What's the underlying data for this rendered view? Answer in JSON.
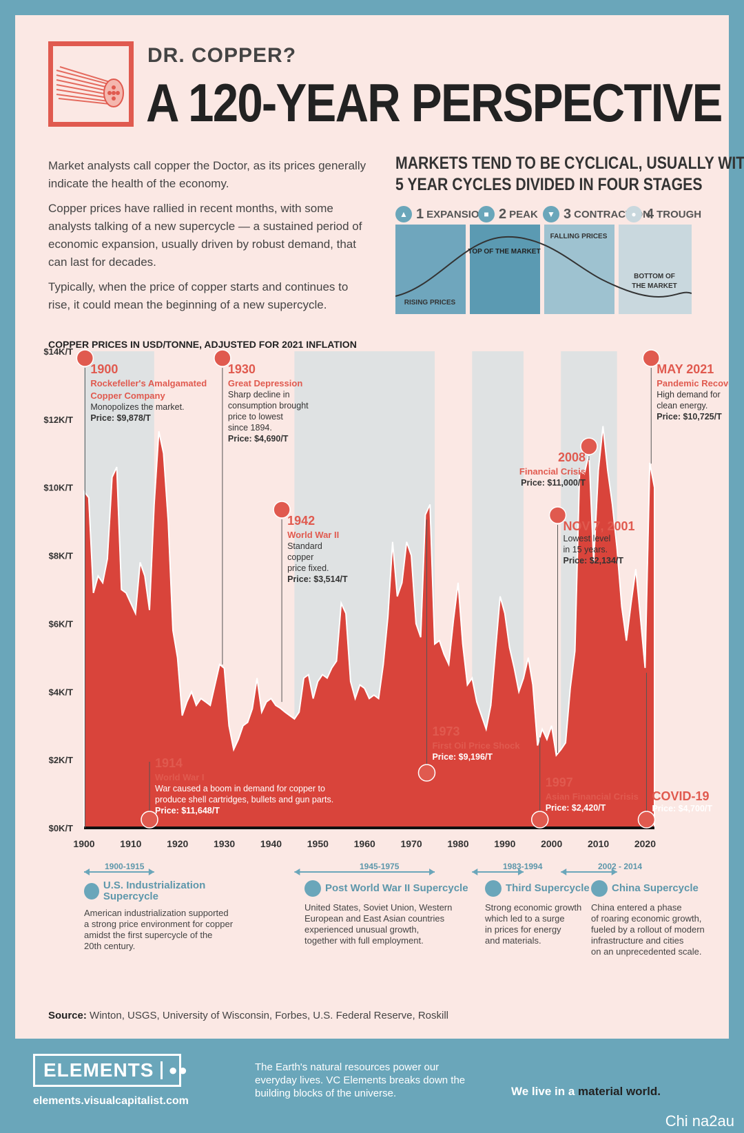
{
  "header": {
    "kicker": "DR. COPPER?",
    "title": "A 120-YEAR PERSPECTIVE"
  },
  "intro": [
    "Market analysts call copper the Doctor, as its prices generally indicate the health of the economy.",
    "Copper prices have rallied in recent months, with some analysts talking of a new supercycle — a sustained period of economic expansion, usually driven by robust demand, that can last for decades.",
    "Typically, when the price of copper starts and continues to rise, it could mean the beginning of a new supercycle."
  ],
  "cycles": {
    "title_line1": "MARKETS TEND TO BE CYCLICAL, USUALLY WITH",
    "title_line2": "5 YEAR CYCLES DIVIDED IN FOUR STAGES",
    "stages": [
      {
        "num": "1",
        "label": "EXPANSION"
      },
      {
        "num": "2",
        "label": "PEAK"
      },
      {
        "num": "3",
        "label": "CONTRACTION"
      },
      {
        "num": "4",
        "label": "TROUGH"
      }
    ],
    "notes": {
      "rising": "RISING PRICES",
      "top1": "TOP OF THE MARKET",
      "falling": "FALLING PRICES",
      "bottom1": "BOTTOM OF",
      "bottom2": "THE MARKET"
    },
    "colors": [
      "#6fa6bd",
      "#5b9ab2",
      "#9ec2d0",
      "#c9d8de"
    ]
  },
  "chart_data": {
    "type": "area",
    "title": "COPPER PRICES IN USD/TONNE, ADJUSTED FOR 2021 INFLATION",
    "ylim": [
      0,
      14000
    ],
    "xlim": [
      1900,
      2022
    ],
    "y_ticks": [
      {
        "v": 0,
        "label": "$0K/T"
      },
      {
        "v": 2000,
        "label": "$2K/T"
      },
      {
        "v": 4000,
        "label": "$4K/T"
      },
      {
        "v": 6000,
        "label": "$6K/T"
      },
      {
        "v": 8000,
        "label": "$8K/T"
      },
      {
        "v": 10000,
        "label": "$10K/T"
      },
      {
        "v": 12000,
        "label": "$12K/T"
      },
      {
        "v": 14000,
        "label": "$14K/T"
      }
    ],
    "x_ticks": [
      1900,
      1910,
      1920,
      1930,
      1940,
      1950,
      1960,
      1970,
      1980,
      1990,
      2000,
      2010,
      2020
    ],
    "color": "#d9443b",
    "points": [
      [
        1900,
        9878
      ],
      [
        1901,
        9700
      ],
      [
        1902,
        6900
      ],
      [
        1903,
        7400
      ],
      [
        1904,
        7200
      ],
      [
        1905,
        7900
      ],
      [
        1906,
        10300
      ],
      [
        1907,
        10600
      ],
      [
        1908,
        7000
      ],
      [
        1909,
        6900
      ],
      [
        1910,
        6600
      ],
      [
        1911,
        6300
      ],
      [
        1912,
        7800
      ],
      [
        1913,
        7400
      ],
      [
        1914,
        6400
      ],
      [
        1915,
        9500
      ],
      [
        1916,
        11648
      ],
      [
        1917,
        11000
      ],
      [
        1918,
        9000
      ],
      [
        1919,
        5800
      ],
      [
        1920,
        5000
      ],
      [
        1921,
        3300
      ],
      [
        1922,
        3700
      ],
      [
        1923,
        4000
      ],
      [
        1924,
        3600
      ],
      [
        1925,
        3800
      ],
      [
        1926,
        3700
      ],
      [
        1927,
        3600
      ],
      [
        1928,
        4200
      ],
      [
        1929,
        4800
      ],
      [
        1930,
        4690
      ],
      [
        1931,
        3000
      ],
      [
        1932,
        2300
      ],
      [
        1933,
        2600
      ],
      [
        1934,
        3000
      ],
      [
        1935,
        3100
      ],
      [
        1936,
        3500
      ],
      [
        1937,
        4400
      ],
      [
        1938,
        3400
      ],
      [
        1939,
        3700
      ],
      [
        1940,
        3800
      ],
      [
        1941,
        3600
      ],
      [
        1942,
        3514
      ],
      [
        1943,
        3400
      ],
      [
        1944,
        3300
      ],
      [
        1945,
        3200
      ],
      [
        1946,
        3400
      ],
      [
        1947,
        4400
      ],
      [
        1948,
        4500
      ],
      [
        1949,
        3800
      ],
      [
        1950,
        4300
      ],
      [
        1951,
        4500
      ],
      [
        1952,
        4400
      ],
      [
        1953,
        4700
      ],
      [
        1954,
        4900
      ],
      [
        1955,
        6600
      ],
      [
        1956,
        6300
      ],
      [
        1957,
        4300
      ],
      [
        1958,
        3800
      ],
      [
        1959,
        4200
      ],
      [
        1960,
        4100
      ],
      [
        1961,
        3800
      ],
      [
        1962,
        3900
      ],
      [
        1963,
        3800
      ],
      [
        1964,
        4800
      ],
      [
        1965,
        6200
      ],
      [
        1966,
        8400
      ],
      [
        1967,
        6800
      ],
      [
        1968,
        7200
      ],
      [
        1969,
        8400
      ],
      [
        1970,
        8000
      ],
      [
        1971,
        6000
      ],
      [
        1972,
        5600
      ],
      [
        1973,
        9196
      ],
      [
        1974,
        9500
      ],
      [
        1975,
        5400
      ],
      [
        1976,
        5500
      ],
      [
        1977,
        5100
      ],
      [
        1978,
        4800
      ],
      [
        1979,
        6100
      ],
      [
        1980,
        7200
      ],
      [
        1981,
        5400
      ],
      [
        1982,
        4200
      ],
      [
        1983,
        4400
      ],
      [
        1984,
        3700
      ],
      [
        1985,
        3300
      ],
      [
        1986,
        2900
      ],
      [
        1987,
        3600
      ],
      [
        1988,
        5200
      ],
      [
        1989,
        6800
      ],
      [
        1990,
        6300
      ],
      [
        1991,
        5300
      ],
      [
        1992,
        4700
      ],
      [
        1993,
        4000
      ],
      [
        1994,
        4400
      ],
      [
        1995,
        5000
      ],
      [
        1996,
        4200
      ],
      [
        1997,
        2420
      ],
      [
        1998,
        2900
      ],
      [
        1999,
        2600
      ],
      [
        2000,
        3000
      ],
      [
        2001,
        2134
      ],
      [
        2002,
        2300
      ],
      [
        2003,
        2500
      ],
      [
        2004,
        4100
      ],
      [
        2005,
        5200
      ],
      [
        2006,
        10500
      ],
      [
        2007,
        10400
      ],
      [
        2008,
        11000
      ],
      [
        2009,
        7800
      ],
      [
        2010,
        10500
      ],
      [
        2011,
        11800
      ],
      [
        2012,
        10500
      ],
      [
        2013,
        9500
      ],
      [
        2014,
        8200
      ],
      [
        2015,
        6500
      ],
      [
        2016,
        5500
      ],
      [
        2017,
        6600
      ],
      [
        2018,
        7600
      ],
      [
        2019,
        6200
      ],
      [
        2020,
        4700
      ],
      [
        2021,
        10725
      ],
      [
        2022,
        10000
      ]
    ],
    "bands": [
      {
        "from": 1900,
        "to": 1915
      },
      {
        "from": 1945,
        "to": 1975
      },
      {
        "from": 1983,
        "to": 1994
      },
      {
        "from": 2002,
        "to": 2014
      }
    ],
    "annotations": [
      {
        "id": "ann-1900",
        "year": "1900",
        "event_l1": "Rockefeller's Amalgamated",
        "event_l2": "Copper Company",
        "desc": [
          "Monopolizes the market."
        ],
        "price": "Price: $9,878/T"
      },
      {
        "id": "ann-1914",
        "year": "1914",
        "event_l1": "World War I",
        "event_l2": "",
        "desc": [
          "War caused a boom in demand for copper to",
          "produce shell cartridges, bullets and gun parts."
        ],
        "price": "Price: $11,648/T"
      },
      {
        "id": "ann-1930",
        "year": "1930",
        "event_l1": "Great Depression",
        "event_l2": "",
        "desc": [
          "Sharp decline in",
          "consumption brought",
          "price to lowest",
          "since 1894."
        ],
        "price": "Price: $4,690/T"
      },
      {
        "id": "ann-1942",
        "year": "1942",
        "event_l1": "World War II",
        "event_l2": "",
        "desc": [
          "Standard",
          "copper",
          "price fixed."
        ],
        "price": "Price: $3,514/T"
      },
      {
        "id": "ann-1973",
        "year": "1973",
        "event_l1": "First Oil Price Shock",
        "event_l2": "",
        "desc": [],
        "price": "Price: $9,196/T"
      },
      {
        "id": "ann-1997",
        "year": "1997",
        "event_l1": "Asian Financial Crisis",
        "event_l2": "",
        "desc": [],
        "price": "Price: $2,420/T"
      },
      {
        "id": "ann-2001",
        "year": "NOV 7, 2001",
        "event_l1": "",
        "event_l2": "",
        "desc": [
          "Lowest level",
          "in 15 years."
        ],
        "price": "Price: $2,134/T"
      },
      {
        "id": "ann-2008",
        "year": "2008",
        "event_l1": "Financial Crisis",
        "event_l2": "",
        "desc": [],
        "price": "Price: $11,000/T"
      },
      {
        "id": "ann-2021",
        "year": "MAY 2021",
        "event_l1": "Pandemic Recovery",
        "event_l2": "",
        "desc": [
          "High demand for",
          "clean energy."
        ],
        "price": "Price: $10,725/T"
      },
      {
        "id": "ann-2020",
        "year": "COVID-19",
        "event_l1": "",
        "event_l2": "",
        "desc": [],
        "price": "Price: $4,700/T"
      }
    ]
  },
  "supercycles": [
    {
      "range": "1900-1915",
      "name": "U.S. Industrialization Supercycle",
      "desc": [
        "American industrialization supported",
        "a strong price environment for copper",
        "amidst the first supercycle of the",
        "20th century."
      ]
    },
    {
      "range": "1945-1975",
      "name": "Post World War II Supercycle",
      "desc": [
        "United States, Soviet Union, Western",
        "European and East Asian countries",
        "experienced unusual growth,",
        "together with full employment."
      ]
    },
    {
      "range": "1983-1994",
      "name": "Third Supercycle",
      "desc": [
        "Strong economic growth",
        "which led to a surge",
        "in prices for energy",
        "and materials."
      ]
    },
    {
      "range": "2002 - 2014",
      "name": "China Supercycle",
      "desc": [
        "China entered a phase",
        "of roaring economic growth,",
        "fueled by a rollout of modern",
        "infrastructure and cities",
        "on an unprecedented scale."
      ]
    }
  ],
  "source": {
    "label": "Source:",
    "text": "Winton, USGS, University of Wisconsin, Forbes, U.S. Federal Reserve, Roskill"
  },
  "footer": {
    "brand": "ELEMENTS",
    "url": "elements.visualcapitalist.com",
    "tagline": "The Earth's natural resources power our everyday lives. VC Elements breaks down the building blocks of the universe.",
    "motto_pre": "We live in a",
    "motto_bold": "material world.",
    "credit": "Chi na2au"
  }
}
